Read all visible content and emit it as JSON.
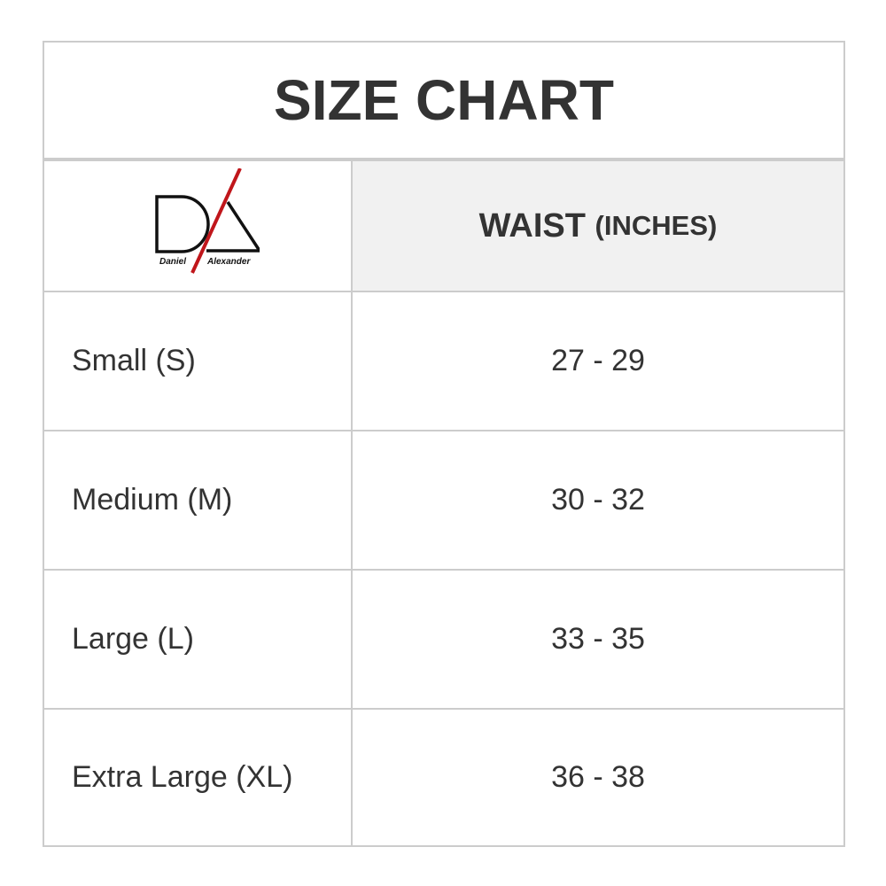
{
  "title": "SIZE CHART",
  "logo": {
    "brand": "Daniel Alexander",
    "text_left": "Daniel",
    "text_right": "Alexander",
    "accent_color": "#c0161b"
  },
  "header": {
    "measure": "WAIST",
    "unit": "(INCHES)"
  },
  "rows": [
    {
      "size": "Small (S)",
      "waist": "27 - 29"
    },
    {
      "size": "Medium (M)",
      "waist": "30 - 32"
    },
    {
      "size": "Large (L)",
      "waist": "33 - 35"
    },
    {
      "size": "Extra Large (XL)",
      "waist": "36 - 38"
    }
  ]
}
